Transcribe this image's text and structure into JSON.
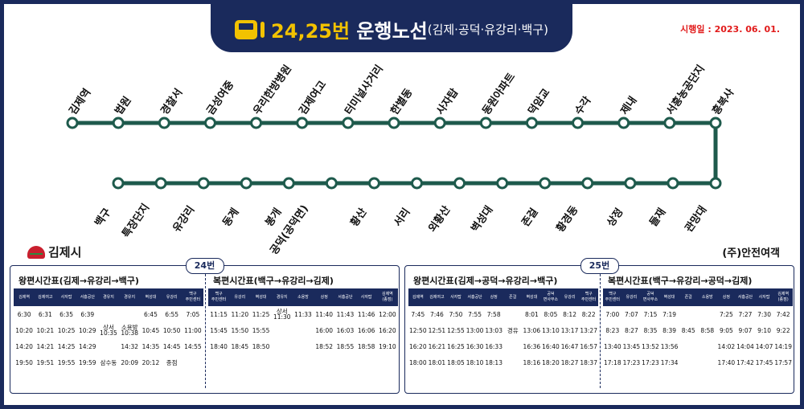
{
  "header": {
    "route_no": "24,25번",
    "route_title": "운행노선",
    "route_desc": "(김제·공덕·유강리·백구)",
    "effective_date": "시행일 : 2023. 06. 01."
  },
  "colors": {
    "navy": "#1a2a5c",
    "route_line": "#1e5a4c",
    "accent": "#f2c200",
    "date": "#e11b1b"
  },
  "route_map": {
    "top_row": [
      "김제역",
      "법원",
      "경찰서",
      "금성여중",
      "우리한방병원",
      "김제여고",
      "터미널사거리",
      "한별동",
      "사자탑",
      "동원아파트",
      "덕암교",
      "수각",
      "제내",
      "서흥농공단지",
      "흥복사"
    ],
    "bottom_row": [
      "백구",
      "특장단지",
      "유강리",
      "동계",
      "봉개",
      "공덕(공덕면)",
      "황산",
      "서리",
      "외황산",
      "벽성대",
      "존걸",
      "황경동",
      "상정",
      "들재",
      "관망대"
    ]
  },
  "logo": {
    "text": "김제시"
  },
  "company": "(주)안전여객",
  "tables": [
    {
      "badge": "24번",
      "left": {
        "title": "왕편시간표(김제→유강리→백구)",
        "headers": [
          "김제역",
          "김제여고",
          "사자탑",
          "서흥공단",
          "경유지",
          "경유지",
          "벽성대",
          "유강리",
          "백구\n주민센터"
        ],
        "rows": [
          [
            "6:30",
            "6:31",
            "6:35",
            "6:39",
            "",
            "",
            "6:45",
            "6:55",
            "7:05"
          ],
          [
            "10:20",
            "10:21",
            "10:25",
            "10:29",
            "상서\n10:35",
            "소용방\n10:38",
            "10:45",
            "10:50",
            "11:00"
          ],
          [
            "14:20",
            "14:21",
            "14:25",
            "14:29",
            "",
            "14:32",
            "14:35",
            "14:45",
            "14:55"
          ],
          [
            "19:50",
            "19:51",
            "19:55",
            "19:59",
            "삼수동",
            "20:09",
            "20:12",
            "종점",
            ""
          ]
        ]
      },
      "right": {
        "title": "복편시간표(백구→유강리→김제)",
        "headers": [
          "백구\n주민센터",
          "유강리",
          "벽성대",
          "경유지",
          "소용방",
          "상정",
          "서흥공단",
          "사자탑",
          "김제역\n(종점)"
        ],
        "rows": [
          [
            "11:15",
            "11:20",
            "11:25",
            "상서\n11:30",
            "11:33",
            "11:40",
            "11:43",
            "11:46",
            "12:00"
          ],
          [
            "15:45",
            "15:50",
            "15:55",
            "",
            "",
            "16:00",
            "16:03",
            "16:06",
            "16:20"
          ],
          [
            "18:40",
            "18:45",
            "18:50",
            "",
            "",
            "18:52",
            "18:55",
            "18:58",
            "19:10"
          ]
        ]
      }
    },
    {
      "badge": "25번",
      "left": {
        "title": "왕편시간표(김제→공덕→유강리→백구)",
        "headers": [
          "김제역",
          "김제여고",
          "사자탑",
          "서흥공단",
          "상정",
          "존걸",
          "벽성대",
          "공덕\n면사무소",
          "유강리",
          "백구\n주민센터"
        ],
        "rows": [
          [
            "7:45",
            "7:46",
            "7:50",
            "7:55",
            "7:58",
            "",
            "8:01",
            "8:05",
            "8:12",
            "8:22"
          ],
          [
            "12:50",
            "12:51",
            "12:55",
            "13:00",
            "13:03",
            "경유",
            "13:06",
            "13:10",
            "13:17",
            "13:27"
          ],
          [
            "16:20",
            "16:21",
            "16:25",
            "16:30",
            "16:33",
            "",
            "16:36",
            "16:40",
            "16:47",
            "16:57"
          ],
          [
            "18:00",
            "18:01",
            "18:05",
            "18:10",
            "18:13",
            "",
            "18:16",
            "18:20",
            "18:27",
            "18:37"
          ]
        ]
      },
      "right": {
        "title": "복편시간표(백구→유강리→공덕→김제)",
        "headers": [
          "백구\n주민센터",
          "유강리",
          "공덕\n면사무소",
          "벽성대",
          "존걸",
          "소용방",
          "상정",
          "서흥공단",
          "사자탑",
          "김제역\n(종점)"
        ],
        "rows": [
          [
            "7:00",
            "7:07",
            "7:15",
            "7:19",
            "",
            "",
            "7:25",
            "7:27",
            "7:30",
            "7:42"
          ],
          [
            "8:23",
            "8:27",
            "8:35",
            "8:39",
            "8:45",
            "8:58",
            "9:05",
            "9:07",
            "9:10",
            "9:22"
          ],
          [
            "13:40",
            "13:45",
            "13:52",
            "13:56",
            "",
            "",
            "14:02",
            "14:04",
            "14:07",
            "14:19"
          ],
          [
            "17:18",
            "17:23",
            "17:23",
            "17:34",
            "",
            "",
            "17:40",
            "17:42",
            "17:45",
            "17:57"
          ]
        ]
      }
    }
  ]
}
